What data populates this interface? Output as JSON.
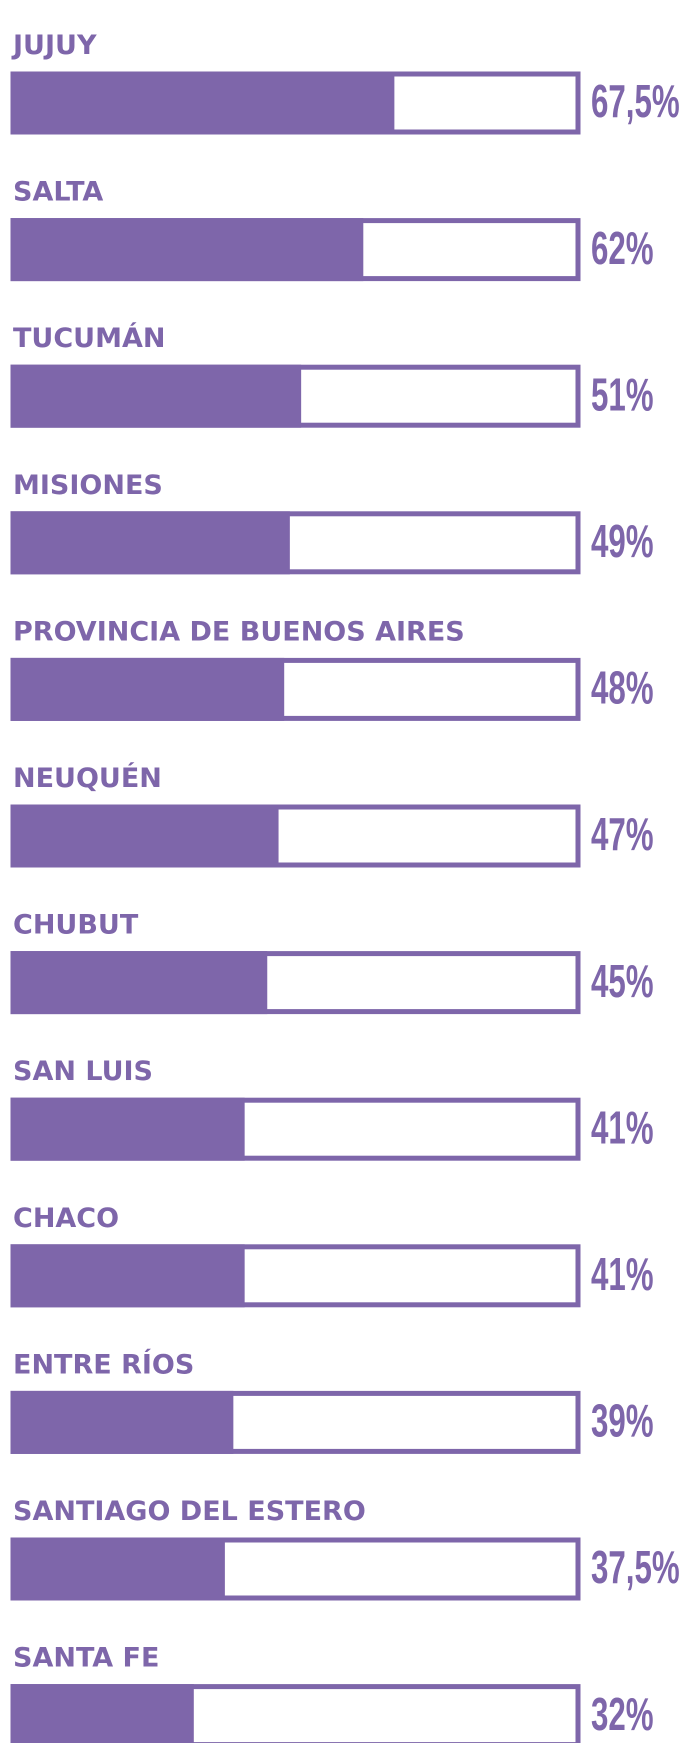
{
  "chart_data": {
    "type": "bar",
    "orientation": "horizontal",
    "color": "#7e66aa",
    "xlim": [
      0,
      100
    ],
    "categories": [
      "JUJUY",
      "SALTA",
      "TUCUMÁN",
      "MISIONES",
      "PROVINCIA DE BUENOS AIRES",
      "NEUQUÉN",
      "CHUBUT",
      "SAN LUIS",
      "CHACO",
      "ENTRE RÍOS",
      "SANTIAGO DEL ESTERO",
      "SANTA FE"
    ],
    "values": [
      67.5,
      62,
      51,
      49,
      48,
      47,
      45,
      41,
      41,
      39,
      37.5,
      32
    ],
    "value_labels": [
      "67,5%",
      "62%",
      "51%",
      "49%",
      "48%",
      "47%",
      "45%",
      "41%",
      "41%",
      "39%",
      "37,5%",
      "32%"
    ]
  }
}
